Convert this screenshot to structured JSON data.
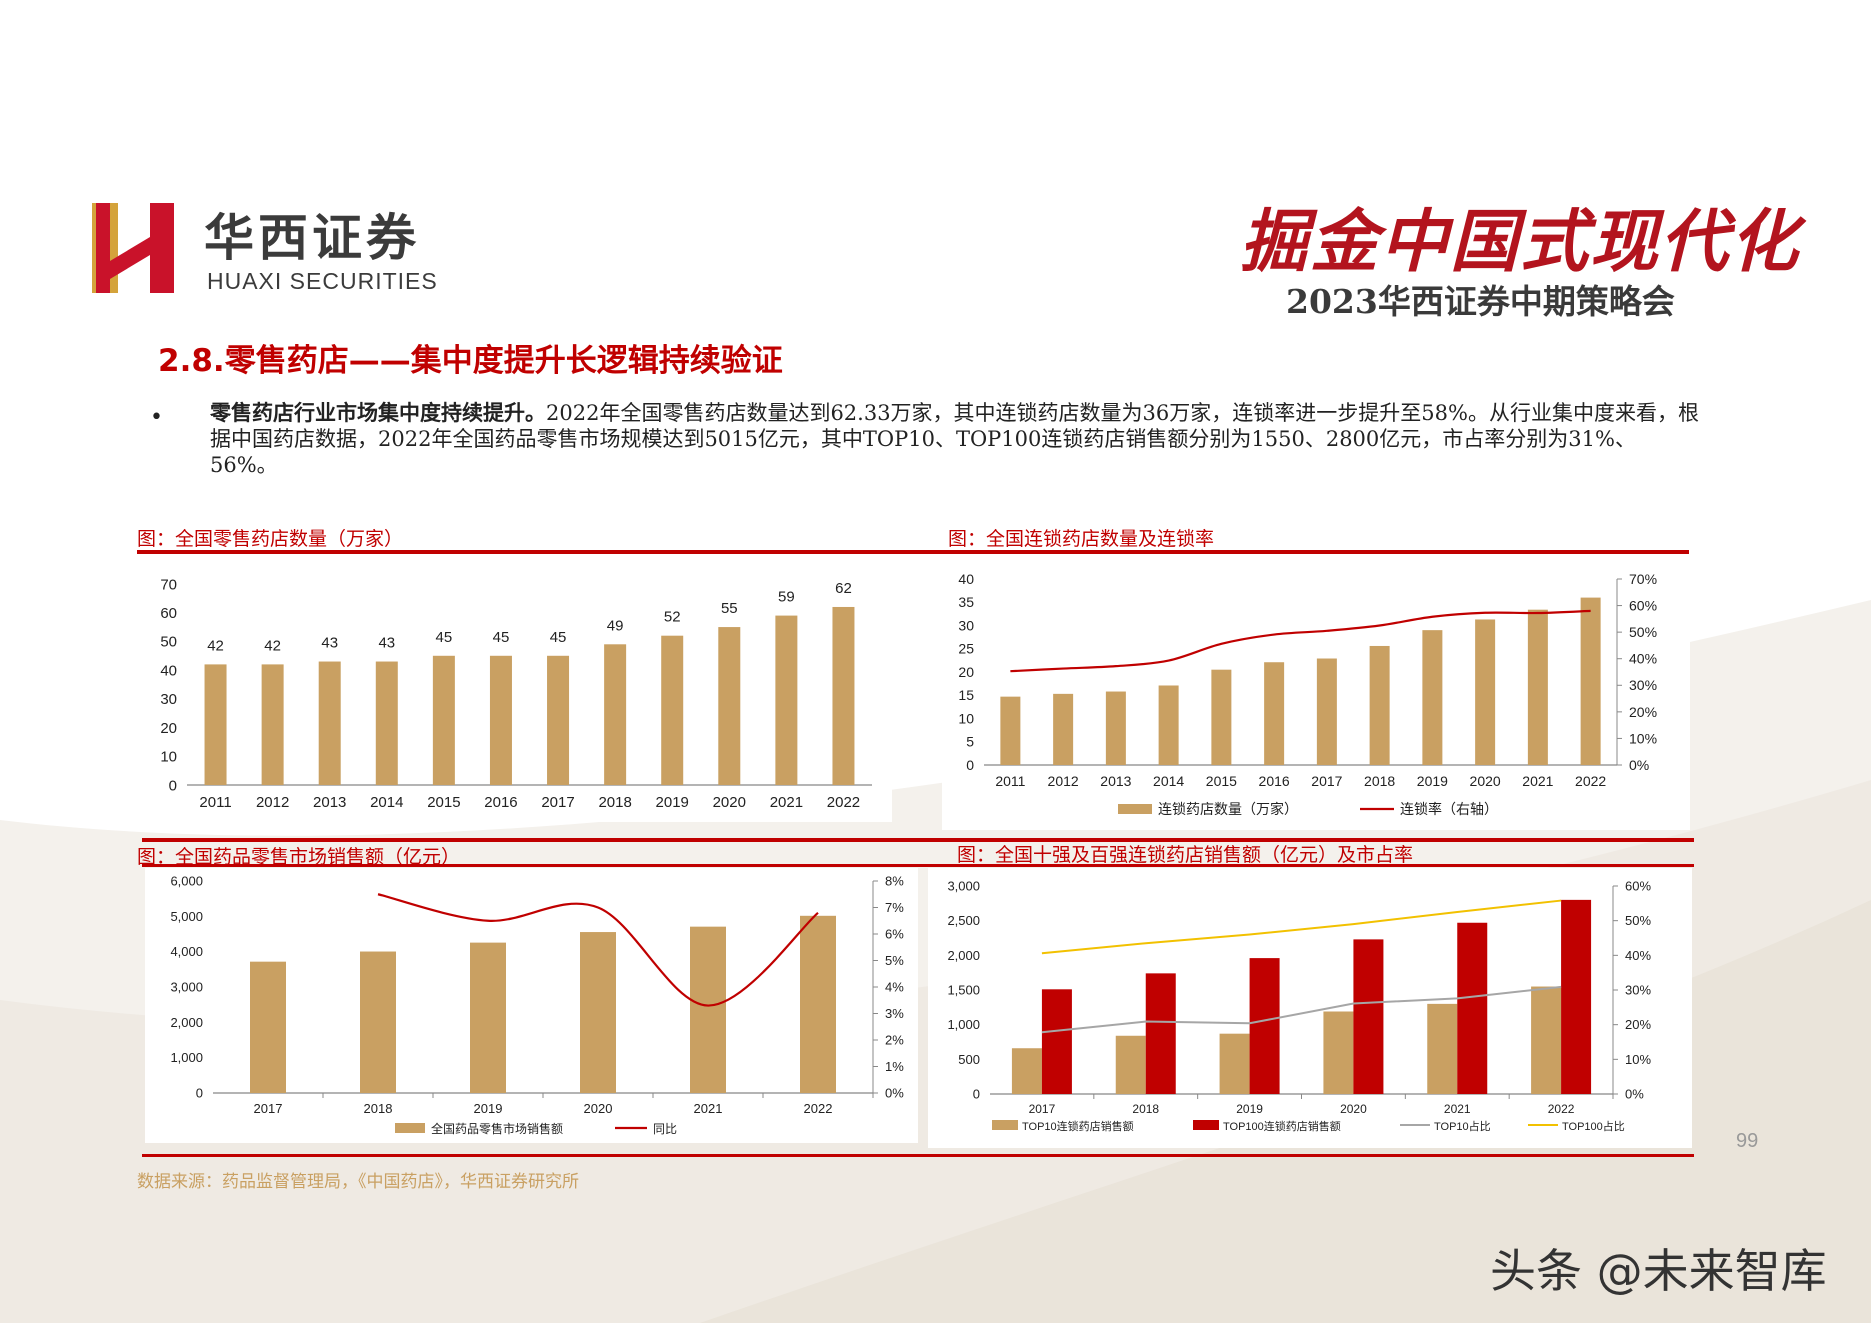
{
  "logo": {
    "name_cn": "华西证券",
    "name_en": "HUAXI SECURITIES"
  },
  "brand": {
    "title": "掘金中国式现代化",
    "subtitle": "2023华西证券中期策略会"
  },
  "page_title": "2.8.零售药店——集中度提升长逻辑持续验证",
  "bullet": {
    "lead": "零售药店行业市场集中度持续提升。",
    "text": "2022年全国零售药店数量达到62.33万家，其中连锁药店数量为36万家，连锁率进一步提升至58%。从行业集中度来看，根据中国药店数据，2022年全国药品零售市场规模达到5015亿元，其中TOP10、TOP100连锁药店销售额分别为1550、2800亿元，市占率分别为31%、56%。"
  },
  "source": "数据来源：药品监督管理局，《中国药店》，华西证券研究所",
  "page_number": "99",
  "watermark": "头条 @未来智库",
  "colors": {
    "gold": "#c9a062",
    "red": "#c00000",
    "gray": "#a6a6a6",
    "yellow": "#f2c100"
  },
  "chart_data": [
    {
      "type": "bar",
      "caption": "图：全国零售药店数量（万家）",
      "categories": [
        "2011",
        "2012",
        "2013",
        "2014",
        "2015",
        "2016",
        "2017",
        "2018",
        "2019",
        "2020",
        "2021",
        "2022"
      ],
      "values": [
        42,
        42,
        43,
        43,
        45,
        45,
        45,
        49,
        52,
        55,
        59,
        62
      ],
      "value_labels": [
        "42",
        "42",
        "43",
        "43",
        "45",
        "45",
        "45",
        "49",
        "52",
        "55",
        "59",
        "62"
      ],
      "ylim": [
        0,
        70
      ],
      "yticks": [
        "0",
        "10",
        "20",
        "30",
        "40",
        "50",
        "60",
        "70"
      ]
    },
    {
      "type": "bar+line",
      "caption": "图：全国连锁药店数量及连锁率",
      "categories": [
        "2011",
        "2012",
        "2013",
        "2014",
        "2015",
        "2016",
        "2017",
        "2018",
        "2019",
        "2020",
        "2021",
        "2022"
      ],
      "series": [
        {
          "name": "连锁药店数量（万家）",
          "values": [
            14.7,
            15.3,
            15.8,
            17.1,
            20.5,
            22.1,
            22.9,
            25.6,
            29.0,
            31.3,
            33.4,
            36.0
          ]
        },
        {
          "name": "连锁率（右轴）",
          "values": [
            35.3,
            36.3,
            37.2,
            39.3,
            45.6,
            49.1,
            50.5,
            52.5,
            55.8,
            57.3,
            57.2,
            58.0
          ]
        }
      ],
      "ylim": [
        0,
        40
      ],
      "yticks": [
        "0",
        "5",
        "10",
        "15",
        "20",
        "25",
        "30",
        "35",
        "40"
      ],
      "y2lim": [
        0,
        70
      ],
      "y2ticks": [
        "0%",
        "10%",
        "20%",
        "30%",
        "40%",
        "50%",
        "60%",
        "70%"
      ]
    },
    {
      "type": "bar+line",
      "caption": "图：全国药品零售市场销售额（亿元）",
      "categories": [
        "2017",
        "2018",
        "2019",
        "2020",
        "2021",
        "2022"
      ],
      "series": [
        {
          "name": "全国药品零售市场销售额",
          "values": [
            3717,
            4004,
            4256,
            4555,
            4708,
            5015
          ]
        },
        {
          "name": "同比",
          "values": [
            null,
            7.5,
            6.5,
            7.0,
            3.3,
            6.8
          ]
        }
      ],
      "ylim": [
        0,
        6000
      ],
      "yticks": [
        "0",
        "1,000",
        "2,000",
        "3,000",
        "4,000",
        "5,000",
        "6,000"
      ],
      "y2lim": [
        0,
        8
      ],
      "y2ticks": [
        "0%",
        "1%",
        "2%",
        "3%",
        "4%",
        "5%",
        "6%",
        "7%",
        "8%"
      ]
    },
    {
      "type": "bar+line",
      "caption": "图：全国十强及百强连锁药店销售额（亿元）及市占率",
      "categories": [
        "2017",
        "2018",
        "2019",
        "2020",
        "2021",
        "2022"
      ],
      "series": [
        {
          "name": "TOP10连锁药店销售额",
          "values": [
            660,
            840,
            870,
            1190,
            1300,
            1550
          ]
        },
        {
          "name": "TOP100连锁药店销售额",
          "values": [
            1510,
            1740,
            1960,
            2230,
            2470,
            2800
          ]
        },
        {
          "name": "TOP10占比",
          "values": [
            17.8,
            20.9,
            20.4,
            26.1,
            27.6,
            30.9
          ]
        },
        {
          "name": "TOP100占比",
          "values": [
            40.6,
            43.5,
            46.0,
            49.0,
            52.5,
            55.8
          ]
        }
      ],
      "ylim": [
        0,
        3000
      ],
      "yticks": [
        "0",
        "500",
        "1,000",
        "1,500",
        "2,000",
        "2,500",
        "3,000"
      ],
      "y2lim": [
        0,
        60
      ],
      "y2ticks": [
        "0%",
        "10%",
        "20%",
        "30%",
        "40%",
        "50%",
        "60%"
      ]
    }
  ]
}
